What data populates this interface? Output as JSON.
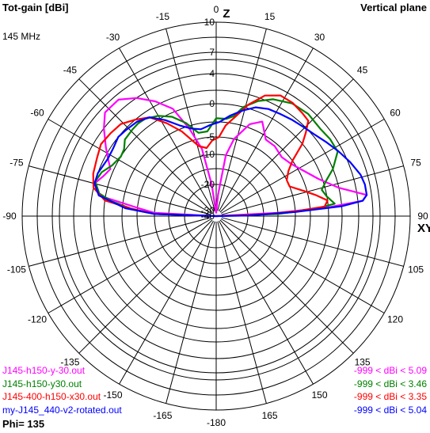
{
  "header": {
    "title_left": "Tot-gain [dBi]",
    "title_right": "Vertical plane",
    "frequency": "145 MHz",
    "phi": "Phi= 135"
  },
  "chart_data": {
    "type": "polar",
    "title": "Tot-gain [dBi]",
    "subtitle": "Vertical plane",
    "frequency": "145 MHz",
    "angle_axis": {
      "unit": "deg",
      "zero_direction": "up",
      "direction": "clockwise",
      "tick_labels": [
        {
          "angle": 0,
          "label": "0"
        },
        {
          "angle": 15,
          "label": "15"
        },
        {
          "angle": 30,
          "label": "30"
        },
        {
          "angle": 45,
          "label": "45"
        },
        {
          "angle": 60,
          "label": "60"
        },
        {
          "angle": 75,
          "label": "75"
        },
        {
          "angle": 90,
          "label": "90"
        },
        {
          "angle": 105,
          "label": "105"
        },
        {
          "angle": 120,
          "label": "120"
        },
        {
          "angle": 135,
          "label": "135"
        },
        {
          "angle": 150,
          "label": "150"
        },
        {
          "angle": 165,
          "label": "165"
        },
        {
          "angle": 180,
          "label": "-180"
        },
        {
          "angle": -165,
          "label": "-165"
        },
        {
          "angle": -150,
          "label": "-150"
        },
        {
          "angle": -135,
          "label": "-135"
        },
        {
          "angle": -120,
          "label": "-120"
        },
        {
          "angle": -105,
          "label": "-105"
        },
        {
          "angle": -90,
          "label": "-90"
        },
        {
          "angle": -75,
          "label": "-75"
        },
        {
          "angle": -60,
          "label": "-60"
        },
        {
          "angle": -45,
          "label": "-45"
        },
        {
          "angle": -30,
          "label": "-30"
        },
        {
          "angle": -15,
          "label": "-15"
        }
      ],
      "axis_names": [
        {
          "angle": 0,
          "label": "Z"
        },
        {
          "angle": 90,
          "label": "XY"
        }
      ]
    },
    "radial_axis": {
      "unit": "dBi",
      "range": [
        -40,
        10
      ],
      "ring_values": [
        10,
        7,
        4,
        0,
        -5,
        -10,
        -20,
        -30,
        -40
      ],
      "ring_labels": [
        "10",
        "7",
        "4",
        "0",
        "-5",
        "-10",
        "-20",
        "-30",
        "-40"
      ],
      "circle_values": [
        10,
        8.5,
        7,
        5.5,
        4,
        2,
        0,
        -2.5,
        -5,
        -10,
        -15,
        -20,
        -40
      ]
    },
    "grid": true,
    "legend_position": "bottom",
    "series": [
      {
        "name": "J145-h150-y-30.out",
        "range_label": "-999 < dBi < 5.09",
        "color": "#ff00ff",
        "points": [
          [
            -90,
            -40
          ],
          [
            -87,
            -10
          ],
          [
            -84,
            -5
          ],
          [
            -80,
            1
          ],
          [
            -75,
            2
          ],
          [
            -70,
            1
          ],
          [
            -66,
            0.5
          ],
          [
            -62,
            1.5
          ],
          [
            -58,
            2.5
          ],
          [
            -52,
            4
          ],
          [
            -47,
            5
          ],
          [
            -40,
            5
          ],
          [
            -34,
            4
          ],
          [
            -28,
            2.5
          ],
          [
            -22,
            0.5
          ],
          [
            -17,
            -3
          ],
          [
            -12,
            -8
          ],
          [
            -8,
            -20
          ],
          [
            -5,
            -30
          ],
          [
            0,
            -34
          ],
          [
            5,
            -24
          ],
          [
            9,
            -10
          ],
          [
            13,
            -5
          ],
          [
            20,
            -2
          ],
          [
            26,
            -1
          ],
          [
            33,
            -3
          ],
          [
            40,
            -3
          ],
          [
            48,
            -3.5
          ],
          [
            55,
            -3
          ],
          [
            62,
            -2
          ],
          [
            70,
            -0.5
          ],
          [
            77,
            2
          ],
          [
            82,
            5
          ],
          [
            84,
            4.5
          ],
          [
            85.5,
            0
          ],
          [
            87,
            -10
          ],
          [
            90,
            -40
          ]
        ]
      },
      {
        "name": "J145-h150-y30.out",
        "range_label": "-999 < dBi < 3.46",
        "color": "#008000",
        "points": [
          [
            -90,
            -40
          ],
          [
            -88,
            -10
          ],
          [
            -85,
            -4
          ],
          [
            -82,
            -1
          ],
          [
            -79,
            1
          ],
          [
            -74,
            2
          ],
          [
            -69,
            1.5
          ],
          [
            -64,
            0.5
          ],
          [
            -58,
            0
          ],
          [
            -54,
            0.2
          ],
          [
            -50,
            1
          ],
          [
            -44,
            1.2
          ],
          [
            -40,
            1.3
          ],
          [
            -36,
            1.2
          ],
          [
            -30,
            0.5
          ],
          [
            -24,
            -0.5
          ],
          [
            -18,
            -2
          ],
          [
            -12,
            -4
          ],
          [
            -6,
            -4
          ],
          [
            0,
            -2
          ],
          [
            6,
            -2
          ],
          [
            10,
            -1.5
          ],
          [
            14,
            0
          ],
          [
            20,
            1.5
          ],
          [
            26,
            2.5
          ],
          [
            34,
            3.2
          ],
          [
            42,
            3.4
          ],
          [
            50,
            3.2
          ],
          [
            56,
            3.4
          ],
          [
            62,
            3.4
          ],
          [
            68,
            2
          ],
          [
            72,
            0.5
          ],
          [
            76,
            -0.5
          ],
          [
            80,
            0
          ],
          [
            84,
            1
          ],
          [
            86,
            -2
          ],
          [
            88,
            -10
          ],
          [
            90,
            -40
          ]
        ]
      },
      {
        "name": "J145-400-h150-x30.out",
        "range_label": "-999 < dBi < 3.35",
        "color": "#ff0000",
        "points": [
          [
            -90,
            -40
          ],
          [
            -88,
            -10
          ],
          [
            -85,
            -4
          ],
          [
            -82,
            0
          ],
          [
            -77,
            2
          ],
          [
            -71,
            2.5
          ],
          [
            -64,
            2.8
          ],
          [
            -58,
            3.2
          ],
          [
            -52,
            3
          ],
          [
            -46,
            2.8
          ],
          [
            -40,
            2
          ],
          [
            -34,
            1
          ],
          [
            -28,
            -1
          ],
          [
            -22,
            -3
          ],
          [
            -14,
            -7
          ],
          [
            -8,
            -8
          ],
          [
            -3,
            -6
          ],
          [
            2,
            -5
          ],
          [
            6,
            -3
          ],
          [
            11,
            -1.5
          ],
          [
            16,
            0.5
          ],
          [
            22,
            2.5
          ],
          [
            28,
            3.3
          ],
          [
            34,
            3.3
          ],
          [
            40,
            3
          ],
          [
            44,
            2.8
          ],
          [
            47,
            1.5
          ],
          [
            50,
            0
          ],
          [
            54,
            -2.5
          ],
          [
            58,
            -4
          ],
          [
            63,
            -5
          ],
          [
            68,
            -5
          ],
          [
            74,
            -3
          ],
          [
            78,
            -1.5
          ],
          [
            82,
            0
          ],
          [
            85,
            -0.5
          ],
          [
            86.5,
            -5
          ],
          [
            88,
            -15
          ],
          [
            90,
            -40
          ]
        ]
      },
      {
        "name": "my-J145_440-v2-rotated.out",
        "range_label": "-999 < dBi < 5.04",
        "color": "#0000ff",
        "points": [
          [
            -90,
            -40
          ],
          [
            -88,
            -10
          ],
          [
            -85,
            -3
          ],
          [
            -80,
            1
          ],
          [
            -75,
            2
          ],
          [
            -70,
            2
          ],
          [
            -66,
            1.7
          ],
          [
            -62,
            1.5
          ],
          [
            -57,
            1.6
          ],
          [
            -51,
            2
          ],
          [
            -46,
            1.8
          ],
          [
            -40,
            1.6
          ],
          [
            -34,
            1
          ],
          [
            -28,
            -0.5
          ],
          [
            -22,
            -2
          ],
          [
            -16,
            -3
          ],
          [
            -10,
            -3.5
          ],
          [
            -4,
            -3
          ],
          [
            2,
            -2.5
          ],
          [
            8,
            -1.5
          ],
          [
            14,
            -0.5
          ],
          [
            20,
            0.5
          ],
          [
            26,
            1
          ],
          [
            32,
            1.2
          ],
          [
            38,
            1.5
          ],
          [
            44,
            1.8
          ],
          [
            50,
            2.2
          ],
          [
            56,
            2.8
          ],
          [
            62,
            3.5
          ],
          [
            68,
            4.2
          ],
          [
            74,
            4.8
          ],
          [
            78,
            5
          ],
          [
            82,
            5
          ],
          [
            84,
            4.5
          ],
          [
            85.5,
            2
          ],
          [
            87,
            -5
          ],
          [
            89,
            -20
          ],
          [
            90,
            -40
          ]
        ]
      }
    ],
    "annotation": "Phi= 135"
  }
}
